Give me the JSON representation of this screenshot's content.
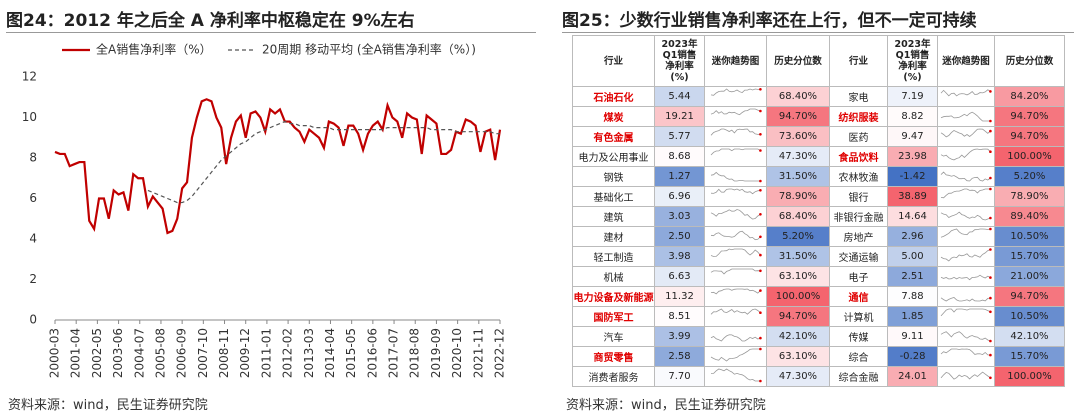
{
  "left": {
    "title": "图24：2012 年之后全 A 净利率中枢稳定在 9%左右",
    "source": "资料来源：wind，民生证券研究院"
  },
  "chart_data": {
    "type": "line",
    "x": [
      "2000-03",
      "2000-06",
      "2000-09",
      "2000-12",
      "2001-03",
      "2001-06",
      "2001-09",
      "2001-12",
      "2002-03",
      "2002-06",
      "2002-09",
      "2002-12",
      "2003-03",
      "2003-06",
      "2003-09",
      "2003-12",
      "2004-03",
      "2004-06",
      "2004-09",
      "2004-12",
      "2005-03",
      "2005-06",
      "2005-09",
      "2005-12",
      "2006-03",
      "2006-06",
      "2006-09",
      "2006-12",
      "2007-03",
      "2007-06",
      "2007-09",
      "2007-12",
      "2008-03",
      "2008-06",
      "2008-09",
      "2008-12",
      "2009-03",
      "2009-06",
      "2009-09",
      "2009-12",
      "2010-03",
      "2010-06",
      "2010-09",
      "2010-12",
      "2011-03",
      "2011-06",
      "2011-09",
      "2011-12",
      "2012-03",
      "2012-06",
      "2012-09",
      "2012-12",
      "2013-03",
      "2013-06",
      "2013-09",
      "2013-12",
      "2014-03",
      "2014-06",
      "2014-09",
      "2014-12",
      "2015-03",
      "2015-06",
      "2015-09",
      "2015-12",
      "2016-03",
      "2016-06",
      "2016-09",
      "2016-12",
      "2017-03",
      "2017-06",
      "2017-09",
      "2017-12",
      "2018-03",
      "2018-06",
      "2018-09",
      "2018-12",
      "2019-03",
      "2019-06",
      "2019-09",
      "2019-12",
      "2020-03",
      "2020-06",
      "2020-09",
      "2020-12",
      "2021-03",
      "2021-06",
      "2021-09",
      "2021-12",
      "2022-03",
      "2022-06",
      "2022-09",
      "2022-12"
    ],
    "series": [
      {
        "name": "全A销售净利率（%）",
        "color": "#c00000",
        "dash": false,
        "values": [
          8.3,
          8.2,
          8.2,
          7.6,
          7.7,
          7.8,
          7.8,
          4.9,
          4.5,
          6.0,
          6.0,
          5.0,
          6.4,
          6.2,
          6.3,
          5.4,
          7.2,
          7.0,
          7.0,
          5.6,
          6.1,
          5.8,
          5.5,
          4.3,
          4.4,
          5.0,
          6.5,
          6.8,
          9.0,
          10.0,
          10.8,
          10.9,
          10.8,
          10.0,
          9.5,
          7.7,
          9.0,
          9.8,
          10.1,
          9.0,
          10.2,
          10.3,
          10.0,
          9.3,
          10.4,
          10.2,
          10.4,
          9.8,
          9.8,
          9.5,
          9.3,
          8.8,
          9.4,
          9.2,
          9.0,
          8.5,
          9.8,
          9.7,
          9.5,
          8.6,
          9.6,
          9.6,
          9.2,
          8.4,
          9.2,
          9.6,
          9.8,
          9.4,
          10.6,
          10.0,
          9.8,
          9.0,
          10.2,
          10.0,
          9.9,
          8.2,
          10.1,
          9.9,
          9.7,
          8.2,
          8.2,
          8.4,
          9.3,
          9.2,
          9.9,
          9.8,
          9.6,
          8.3,
          9.3,
          9.4,
          7.9,
          9.4
        ]
      },
      {
        "name": "20周期 移动平均 (全A销售净利率（%）)",
        "color": "#555555",
        "dash": true,
        "values": [
          null,
          null,
          null,
          null,
          null,
          null,
          null,
          null,
          null,
          null,
          null,
          null,
          null,
          null,
          null,
          null,
          null,
          null,
          null,
          6.4,
          6.3,
          6.2,
          6.1,
          6.0,
          5.9,
          5.8,
          5.8,
          5.9,
          6.1,
          6.4,
          6.7,
          7.0,
          7.3,
          7.6,
          7.9,
          8.1,
          8.3,
          8.5,
          8.7,
          8.8,
          9.0,
          9.2,
          9.3,
          9.4,
          9.5,
          9.6,
          9.7,
          9.8,
          9.7,
          9.7,
          9.6,
          9.6,
          9.6,
          9.5,
          9.5,
          9.5,
          9.5,
          9.4,
          9.4,
          9.4,
          9.4,
          9.4,
          9.4,
          9.4,
          9.4,
          9.4,
          9.4,
          9.4,
          9.5,
          9.5,
          9.5,
          9.5,
          9.5,
          9.5,
          9.5,
          9.5,
          9.5,
          9.4,
          9.4,
          9.4,
          9.4,
          9.4,
          9.3,
          9.3,
          9.3,
          9.3,
          9.3,
          9.3,
          9.3,
          9.3,
          9.2,
          9.2
        ]
      }
    ],
    "xticks": [
      "2000-03",
      "2001-04",
      "2002-05",
      "2003-06",
      "2004-07",
      "2005-08",
      "2006-09",
      "2007-10",
      "2008-11",
      "2009-12",
      "2011-01",
      "2012-02",
      "2013-03",
      "2014-04",
      "2015-05",
      "2016-06",
      "2017-07",
      "2018-08",
      "2019-09",
      "2020-10",
      "2021-11",
      "2022-12"
    ],
    "ylim": [
      0,
      12
    ],
    "yticks": [
      0,
      2,
      4,
      6,
      8,
      10,
      12
    ]
  },
  "right": {
    "title": "图25：少数行业销售净利率还在上行，但不一定可持续",
    "source": "资料来源：wind，民生证券研究院"
  },
  "table": {
    "header": [
      "行业",
      "2023年\nQ1销售\n净利率\n(%)",
      "迷你趋势图",
      "历史分位数",
      "行业",
      "2023年\nQ1销售\n净利率\n(%)",
      "迷你趋势图",
      "历史分位数"
    ],
    "rows": [
      [
        {
          "name": "石油石化",
          "value": "5.44",
          "pct": "68.40%",
          "highlight": true
        },
        {
          "name": "家电",
          "value": "7.19",
          "pct": "84.20%",
          "highlight": false
        }
      ],
      [
        {
          "name": "煤炭",
          "value": "19.21",
          "pct": "94.70%",
          "highlight": true
        },
        {
          "name": "纺织服装",
          "value": "8.82",
          "pct": "94.70%",
          "highlight": true
        }
      ],
      [
        {
          "name": "有色金属",
          "value": "5.77",
          "pct": "73.60%",
          "highlight": true
        },
        {
          "name": "医药",
          "value": "9.47",
          "pct": "94.70%",
          "highlight": false
        }
      ],
      [
        {
          "name": "电力及公用事业",
          "value": "8.68",
          "pct": "47.30%",
          "highlight": false
        },
        {
          "name": "食品饮料",
          "value": "23.98",
          "pct": "100.00%",
          "highlight": true
        }
      ],
      [
        {
          "name": "钢铁",
          "value": "1.27",
          "pct": "31.50%",
          "highlight": false
        },
        {
          "name": "农林牧渔",
          "value": "-1.42",
          "pct": "5.20%",
          "highlight": false
        }
      ],
      [
        {
          "name": "基础化工",
          "value": "6.96",
          "pct": "78.90%",
          "highlight": false
        },
        {
          "name": "银行",
          "value": "38.89",
          "pct": "78.90%",
          "highlight": false
        }
      ],
      [
        {
          "name": "建筑",
          "value": "3.03",
          "pct": "68.40%",
          "highlight": false
        },
        {
          "name": "非银行金融",
          "value": "14.64",
          "pct": "89.40%",
          "highlight": false
        }
      ],
      [
        {
          "name": "建材",
          "value": "2.50",
          "pct": "5.20%",
          "highlight": false
        },
        {
          "name": "房地产",
          "value": "2.96",
          "pct": "10.50%",
          "highlight": false
        }
      ],
      [
        {
          "name": "轻工制造",
          "value": "3.98",
          "pct": "31.50%",
          "highlight": false
        },
        {
          "name": "交通运输",
          "value": "5.00",
          "pct": "15.70%",
          "highlight": false
        }
      ],
      [
        {
          "name": "机械",
          "value": "6.63",
          "pct": "63.10%",
          "highlight": false
        },
        {
          "name": "电子",
          "value": "2.51",
          "pct": "21.00%",
          "highlight": false
        }
      ],
      [
        {
          "name": "电力设备及新能源",
          "value": "11.32",
          "pct": "100.00%",
          "highlight": true
        },
        {
          "name": "通信",
          "value": "7.88",
          "pct": "94.70%",
          "highlight": true
        }
      ],
      [
        {
          "name": "国防军工",
          "value": "8.51",
          "pct": "94.70%",
          "highlight": true
        },
        {
          "name": "计算机",
          "value": "1.85",
          "pct": "10.50%",
          "highlight": false
        }
      ],
      [
        {
          "name": "汽车",
          "value": "3.99",
          "pct": "42.10%",
          "highlight": false
        },
        {
          "name": "传媒",
          "value": "9.11",
          "pct": "42.10%",
          "highlight": false
        }
      ],
      [
        {
          "name": "商贸零售",
          "value": "2.58",
          "pct": "63.10%",
          "highlight": true
        },
        {
          "name": "综合",
          "value": "-0.28",
          "pct": "15.70%",
          "highlight": false
        }
      ],
      [
        {
          "name": "消费者服务",
          "value": "7.70",
          "pct": "47.30%",
          "highlight": false
        },
        {
          "name": "综合金融",
          "value": "24.01",
          "pct": "100.00%",
          "highlight": false
        }
      ]
    ]
  }
}
